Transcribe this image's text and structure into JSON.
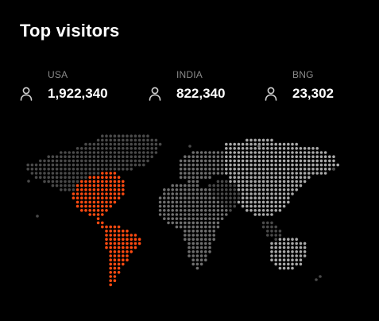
{
  "widget": {
    "title": "Top visitors"
  },
  "stats": [
    {
      "label": "USA",
      "value": "1,922,340",
      "icon": "user-icon"
    },
    {
      "label": "INDIA",
      "value": "822,340",
      "icon": "user-icon"
    },
    {
      "label": "BNG",
      "value": "23,302",
      "icon": "user-icon"
    }
  ],
  "map": {
    "highlight_region": "Americas",
    "colors": {
      "background": "#000000",
      "highlight": "#ff4a10",
      "dim": "#4a4a4a",
      "mid": "#6f6f6f",
      "bright": "#a9a9a9"
    }
  }
}
